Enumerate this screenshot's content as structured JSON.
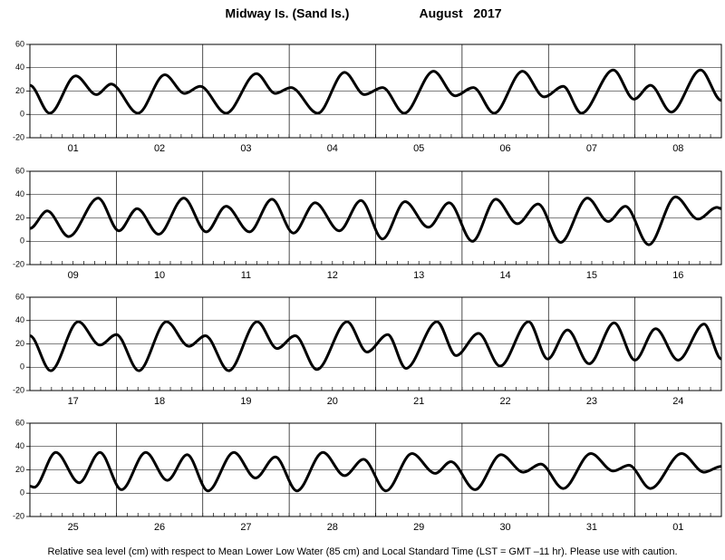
{
  "title": "Midway Is. (Sand Is.)",
  "date": "August   2017",
  "footnote": "Relative sea level (cm) with respect to Mean Lower Low Water (85 cm) and Local Standard Time (LST = GMT –11 hr). Please use with caution.",
  "chart_data": [
    {
      "type": "line",
      "categories": [
        "01",
        "02",
        "03",
        "04",
        "05",
        "06",
        "07",
        "08"
      ],
      "xlim": [
        0,
        8
      ],
      "ylim": [
        -20,
        60
      ],
      "yticks": [
        -20,
        0,
        20,
        40,
        60
      ],
      "color": "#000000",
      "x": [
        0,
        0.23,
        0.53,
        0.77,
        0.94,
        1.25,
        1.56,
        1.79,
        1.97,
        2.27,
        2.62,
        2.84,
        3.02,
        3.33,
        3.64,
        3.87,
        4.08,
        4.33,
        4.67,
        4.92,
        5.13,
        5.37,
        5.7,
        5.95,
        6.17,
        6.38,
        6.75,
        6.99,
        7.18,
        7.42,
        7.76,
        8
      ],
      "values": [
        25,
        1,
        33,
        17,
        26,
        1,
        34,
        18,
        24,
        1,
        35,
        18,
        23,
        1,
        36,
        17,
        23,
        1,
        37,
        16,
        23,
        1,
        37,
        15,
        24,
        1,
        38,
        13,
        25,
        2,
        38,
        12
      ]
    },
    {
      "type": "line",
      "categories": [
        "09",
        "10",
        "11",
        "12",
        "13",
        "14",
        "15",
        "16"
      ],
      "xlim": [
        0,
        8
      ],
      "ylim": [
        -20,
        60
      ],
      "yticks": [
        -20,
        0,
        20,
        40,
        60
      ],
      "color": "#000000",
      "x": [
        0,
        0.2,
        0.45,
        0.79,
        1.03,
        1.24,
        1.49,
        1.78,
        2.04,
        2.27,
        2.54,
        2.8,
        3.05,
        3.3,
        3.58,
        3.83,
        4.08,
        4.34,
        4.61,
        4.85,
        5.12,
        5.39,
        5.64,
        5.88,
        6.14,
        6.45,
        6.69,
        6.89,
        7.16,
        7.47,
        7.73,
        7.95,
        8
      ],
      "values": [
        11,
        26,
        4,
        37,
        9,
        28,
        6,
        37,
        8,
        30,
        8,
        36,
        7,
        33,
        9,
        35,
        2,
        34,
        12,
        33,
        0,
        36,
        15,
        32,
        -1,
        37,
        17,
        30,
        -3,
        38,
        19,
        29,
        28
      ]
    },
    {
      "type": "line",
      "categories": [
        "17",
        "18",
        "19",
        "20",
        "21",
        "22",
        "23",
        "24"
      ],
      "xlim": [
        0,
        8
      ],
      "ylim": [
        -20,
        60
      ],
      "yticks": [
        -20,
        0,
        20,
        40,
        60
      ],
      "color": "#000000",
      "x": [
        0,
        0.24,
        0.56,
        0.81,
        1.0,
        1.26,
        1.58,
        1.84,
        2.03,
        2.3,
        2.63,
        2.86,
        3.07,
        3.32,
        3.67,
        3.9,
        4.14,
        4.35,
        4.71,
        4.93,
        5.19,
        5.44,
        5.77,
        5.99,
        6.22,
        6.47,
        6.76,
        7.0,
        7.24,
        7.5,
        7.8,
        8
      ],
      "values": [
        27,
        -3,
        39,
        19,
        28,
        -3,
        39,
        18,
        27,
        -3,
        39,
        16,
        27,
        -2,
        39,
        13,
        28,
        -1,
        39,
        10,
        29,
        1,
        39,
        7,
        32,
        3,
        38,
        6,
        33,
        6,
        37,
        7
      ]
    },
    {
      "type": "line",
      "categories": [
        "25",
        "26",
        "27",
        "28",
        "29",
        "30",
        "31",
        "01"
      ],
      "xlim": [
        0,
        8
      ],
      "ylim": [
        -20,
        60
      ],
      "yticks": [
        -20,
        0,
        20,
        40,
        60
      ],
      "color": "#000000",
      "x": [
        0,
        0.05,
        0.3,
        0.57,
        0.81,
        1.06,
        1.34,
        1.59,
        1.82,
        2.06,
        2.36,
        2.61,
        2.84,
        3.09,
        3.39,
        3.64,
        3.86,
        4.12,
        4.42,
        4.69,
        4.87,
        5.15,
        5.45,
        5.71,
        5.91,
        6.17,
        6.49,
        6.75,
        6.93,
        7.18,
        7.54,
        7.8,
        8
      ],
      "values": [
        6,
        5,
        35,
        9,
        35,
        3,
        35,
        11,
        33,
        2,
        35,
        13,
        31,
        2,
        35,
        15,
        29,
        2,
        34,
        17,
        27,
        3,
        33,
        18,
        25,
        4,
        34,
        19,
        24,
        4,
        34,
        18,
        23
      ]
    }
  ]
}
